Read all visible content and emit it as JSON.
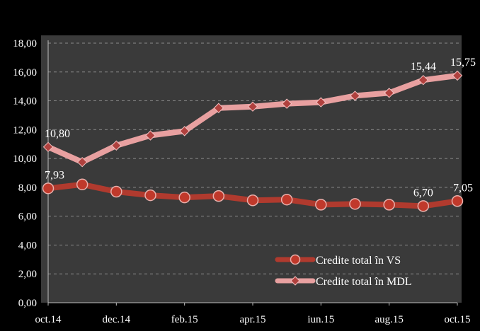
{
  "chart_data": {
    "type": "line",
    "x_tick_labels": [
      "oct.14",
      "dec.14",
      "feb.15",
      "apr.15",
      "iun.15",
      "aug.15",
      "oct.15"
    ],
    "x_tick_indices": [
      0,
      2,
      4,
      6,
      8,
      10,
      12
    ],
    "y_ticks": [
      "0,00",
      "2,00",
      "4,00",
      "6,00",
      "8,00",
      "10,00",
      "12,00",
      "14,00",
      "16,00",
      "18,00"
    ],
    "ylim": [
      0,
      18
    ],
    "grid": true,
    "legend_position": "bottom-right",
    "series": [
      {
        "name": "Credite total în VS",
        "color": "#b03a2e",
        "marker_color": "#c0392b",
        "marker": "circle",
        "values": [
          7.93,
          8.2,
          7.7,
          7.45,
          7.3,
          7.4,
          7.1,
          7.15,
          6.8,
          6.85,
          6.8,
          6.7,
          7.05
        ],
        "labels": [
          {
            "index": 0,
            "text": "7,93"
          },
          {
            "index": 11,
            "text": "6,70"
          },
          {
            "index": 12,
            "text": "7,05"
          }
        ]
      },
      {
        "name": "Credite total în MDL",
        "color": "#e8a0a0",
        "marker_color": "#b0413e",
        "marker": "diamond",
        "values": [
          10.8,
          9.75,
          10.9,
          11.6,
          11.9,
          13.5,
          13.6,
          13.8,
          13.9,
          14.35,
          14.55,
          15.44,
          15.75
        ],
        "labels": [
          {
            "index": 0,
            "text": "10,80"
          },
          {
            "index": 11,
            "text": "15,44"
          },
          {
            "index": 12,
            "text": "15,75"
          }
        ]
      }
    ]
  },
  "colors": {
    "background": "#000000",
    "plot_area": "#3a3a3a",
    "grid": "#8a8a8a",
    "text": "#ffffff"
  }
}
